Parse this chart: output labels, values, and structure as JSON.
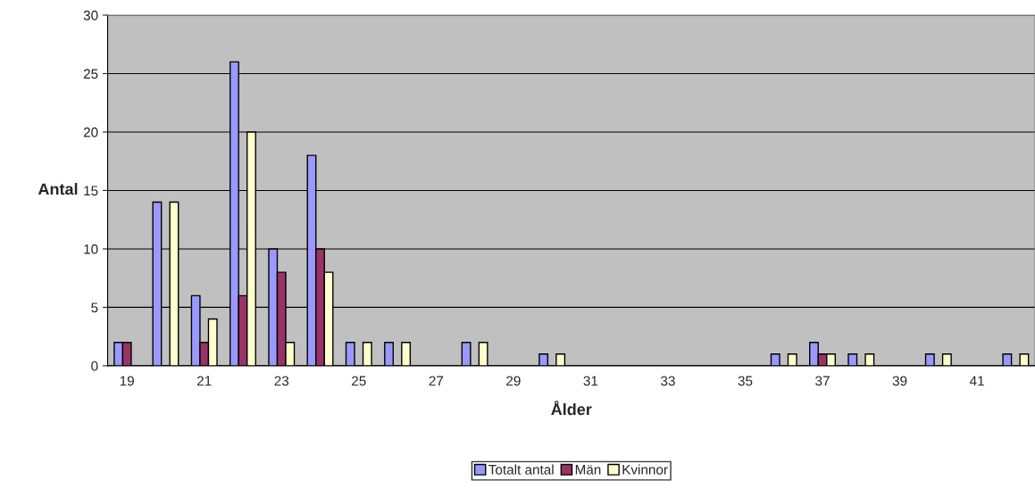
{
  "chart_data": {
    "type": "bar",
    "xlabel": "Ålder",
    "ylabel": "Antal",
    "categories": [
      "19",
      null,
      "21",
      null,
      "23",
      null,
      "25",
      null,
      "27",
      null,
      "29",
      null,
      "31",
      null,
      "33",
      null,
      "35",
      null,
      "37",
      null,
      "39",
      null,
      "41",
      null
    ],
    "series": [
      {
        "name": "Totalt antal",
        "color": "#9999ff",
        "values": [
          2,
          14,
          6,
          26,
          10,
          18,
          2,
          2,
          0,
          2,
          0,
          1,
          0,
          0,
          0,
          0,
          0,
          1,
          2,
          1,
          0,
          1,
          0,
          1
        ]
      },
      {
        "name": "Män",
        "color": "#993366",
        "values": [
          2,
          0,
          2,
          6,
          8,
          10,
          0,
          0,
          0,
          0,
          0,
          0,
          0,
          0,
          0,
          0,
          0,
          0,
          1,
          0,
          0,
          0,
          0,
          0
        ]
      },
      {
        "name": "Kvinnor",
        "color": "#ffffcc",
        "values": [
          0,
          14,
          4,
          20,
          2,
          8,
          2,
          2,
          0,
          2,
          0,
          1,
          0,
          0,
          0,
          0,
          0,
          1,
          1,
          1,
          0,
          1,
          0,
          1
        ]
      }
    ],
    "ylim": [
      0,
      30
    ],
    "yticks": [
      0,
      5,
      10,
      15,
      20,
      25,
      30
    ],
    "grid": "y",
    "legend": "bottom"
  }
}
